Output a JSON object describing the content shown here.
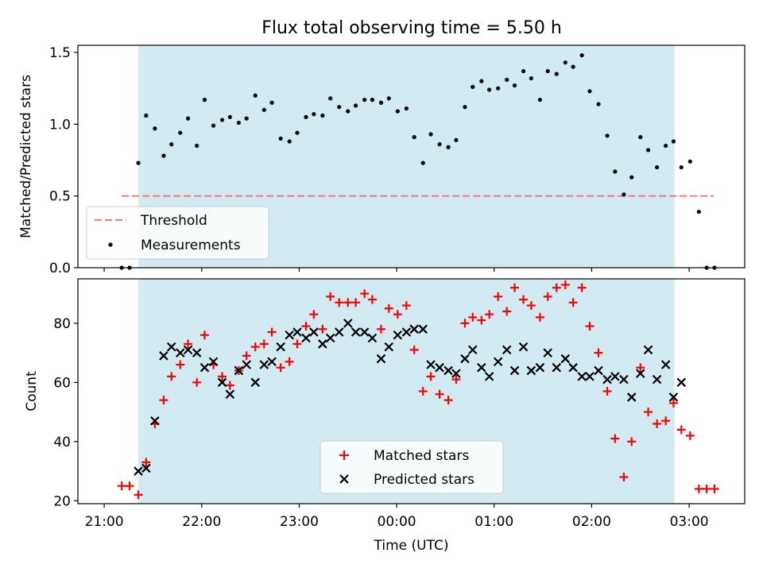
{
  "title": "Flux total observing time = 5.50 h",
  "x_tick_labels": [
    "21:00",
    "22:00",
    "23:00",
    "00:00",
    "01:00",
    "02:00",
    "03:00"
  ],
  "colors": {
    "shade": "#add8e6",
    "threshold": "#f08080",
    "matched": "#ff0000",
    "predicted": "#000000",
    "measurement": "#000000"
  },
  "chart_data": [
    {
      "type": "scatter",
      "panel": "top",
      "x_unit": "hours since 21:00 UTC",
      "xlabel": "",
      "ylabel": "Matched/Predicted stars",
      "xlim": [
        -0.27,
        6.57
      ],
      "ylim": [
        0,
        1.55
      ],
      "yticks": [
        0.0,
        0.5,
        1.0,
        1.5
      ],
      "ytick_labels": [
        "0.0",
        "0.5",
        "1.0",
        "1.5"
      ],
      "shaded_region": [
        0.35,
        5.85
      ],
      "threshold": {
        "name": "Threshold",
        "value": 0.5,
        "x_range": [
          0.18,
          6.25
        ],
        "style": "dashed"
      },
      "legend": {
        "placement": "lower-left",
        "entries": [
          "Threshold",
          "Measurements"
        ]
      },
      "series": [
        {
          "name": "Measurements",
          "x": [
            0.18,
            0.26,
            0.35,
            0.43,
            0.52,
            0.61,
            0.69,
            0.78,
            0.86,
            0.95,
            1.03,
            1.12,
            1.21,
            1.29,
            1.38,
            1.46,
            1.55,
            1.64,
            1.72,
            1.81,
            1.9,
            1.98,
            2.07,
            2.15,
            2.24,
            2.32,
            2.41,
            2.5,
            2.58,
            2.67,
            2.75,
            2.84,
            2.92,
            3.01,
            3.1,
            3.18,
            3.27,
            3.35,
            3.44,
            3.53,
            3.61,
            3.7,
            3.78,
            3.87,
            3.95,
            4.04,
            4.13,
            4.21,
            4.3,
            4.38,
            4.47,
            4.55,
            4.64,
            4.73,
            4.81,
            4.9,
            4.98,
            5.07,
            5.16,
            5.24,
            5.33,
            5.41,
            5.5,
            5.58,
            5.67,
            5.76,
            5.84,
            5.92,
            6.01,
            6.1,
            6.18,
            6.26
          ],
          "y": [
            0.0,
            0.0,
            0.73,
            1.06,
            0.97,
            0.78,
            0.86,
            0.94,
            1.04,
            0.85,
            1.17,
            0.99,
            1.03,
            1.05,
            1.01,
            1.04,
            1.2,
            1.1,
            1.15,
            0.9,
            0.88,
            0.94,
            1.05,
            1.07,
            1.06,
            1.18,
            1.12,
            1.09,
            1.13,
            1.17,
            1.17,
            1.15,
            1.18,
            1.09,
            1.11,
            0.91,
            0.73,
            0.93,
            0.86,
            0.84,
            0.89,
            1.12,
            1.26,
            1.3,
            1.24,
            1.25,
            1.31,
            1.27,
            1.37,
            1.32,
            1.17,
            1.37,
            1.35,
            1.43,
            1.4,
            1.48,
            1.23,
            1.14,
            0.92,
            0.67,
            0.51,
            0.63,
            0.91,
            0.82,
            0.7,
            0.85,
            0.88,
            0.7,
            0.74,
            0.39,
            0.0,
            0.0
          ]
        }
      ]
    },
    {
      "type": "scatter",
      "panel": "bottom",
      "x_unit": "hours since 21:00 UTC",
      "xlabel": "Time (UTC)",
      "ylabel": "Count",
      "xlim": [
        -0.27,
        6.57
      ],
      "ylim": [
        19,
        95
      ],
      "yticks": [
        20,
        40,
        60,
        80
      ],
      "ytick_labels": [
        "20",
        "40",
        "60",
        "80"
      ],
      "shaded_region": [
        0.35,
        5.85
      ],
      "legend": {
        "placement": "lower-center",
        "entries": [
          "Matched stars",
          "Predicted stars"
        ]
      },
      "series": [
        {
          "name": "Matched stars",
          "marker": "+",
          "x": [
            0.18,
            0.26,
            0.35,
            0.43,
            0.52,
            0.61,
            0.69,
            0.78,
            0.86,
            0.95,
            1.03,
            1.12,
            1.21,
            1.29,
            1.38,
            1.46,
            1.55,
            1.64,
            1.72,
            1.81,
            1.9,
            1.98,
            2.07,
            2.15,
            2.24,
            2.32,
            2.41,
            2.5,
            2.58,
            2.67,
            2.75,
            2.84,
            2.92,
            3.01,
            3.1,
            3.18,
            3.27,
            3.35,
            3.44,
            3.53,
            3.61,
            3.7,
            3.78,
            3.87,
            3.95,
            4.04,
            4.13,
            4.21,
            4.3,
            4.38,
            4.47,
            4.55,
            4.64,
            4.73,
            4.81,
            4.9,
            4.98,
            5.07,
            5.16,
            5.24,
            5.33,
            5.41,
            5.5,
            5.58,
            5.67,
            5.76,
            5.84,
            5.92,
            6.01,
            6.1,
            6.18,
            6.26
          ],
          "y": [
            25,
            25,
            22,
            33,
            46,
            54,
            62,
            66,
            73,
            60,
            76,
            66,
            62,
            59,
            64,
            69,
            72,
            73,
            77,
            65,
            67,
            73,
            79,
            83,
            78,
            89,
            87,
            87,
            87,
            90,
            88,
            78,
            85,
            83,
            86,
            71,
            57,
            62,
            56,
            54,
            61,
            80,
            82,
            81,
            83,
            89,
            84,
            92,
            88,
            86,
            82,
            89,
            92,
            93,
            87,
            92,
            79,
            70,
            57,
            41,
            28,
            40,
            65,
            50,
            46,
            47,
            53,
            44,
            42,
            24,
            24,
            24
          ]
        },
        {
          "name": "Predicted stars",
          "marker": "x",
          "x": [
            0.35,
            0.43,
            0.52,
            0.61,
            0.69,
            0.78,
            0.86,
            0.95,
            1.03,
            1.12,
            1.21,
            1.29,
            1.38,
            1.46,
            1.55,
            1.64,
            1.72,
            1.81,
            1.9,
            1.98,
            2.07,
            2.15,
            2.24,
            2.32,
            2.41,
            2.5,
            2.58,
            2.67,
            2.75,
            2.84,
            2.92,
            3.01,
            3.1,
            3.18,
            3.27,
            3.35,
            3.44,
            3.53,
            3.61,
            3.7,
            3.78,
            3.87,
            3.95,
            4.04,
            4.13,
            4.21,
            4.3,
            4.38,
            4.47,
            4.55,
            4.64,
            4.73,
            4.81,
            4.9,
            4.98,
            5.07,
            5.16,
            5.24,
            5.33,
            5.41,
            5.5,
            5.58,
            5.67,
            5.76,
            5.84,
            5.92
          ],
          "y": [
            30,
            31,
            47,
            69,
            72,
            70,
            71,
            70,
            65,
            67,
            60,
            56,
            64,
            66,
            60,
            66,
            67,
            72,
            76,
            77,
            75,
            77,
            73,
            75,
            77,
            80,
            77,
            77,
            75,
            68,
            72,
            76,
            77,
            78,
            78,
            66,
            65,
            64,
            63,
            68,
            71,
            65,
            62,
            67,
            71,
            64,
            72,
            64,
            65,
            70,
            65,
            68,
            65,
            62,
            62,
            64,
            61,
            62,
            61,
            55,
            63,
            71,
            61,
            66,
            55,
            60
          ]
        }
      ]
    }
  ]
}
